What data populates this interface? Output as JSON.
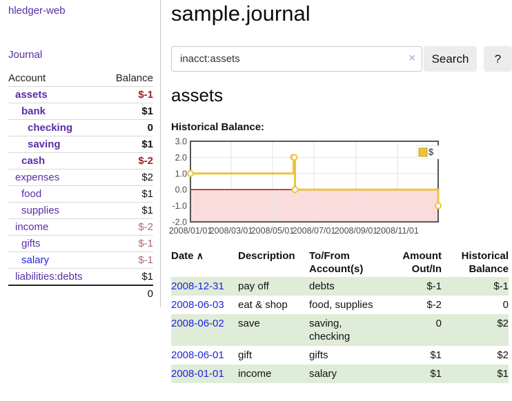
{
  "colors": {
    "link_purple": "#5a2ca6",
    "link_blue": "#2222dd",
    "negative_strong": "#9e1f1f",
    "negative_soft": "#b26868",
    "row_green": "#dfecd8",
    "chart_gold": "#edc240",
    "chart_negative_fill": "#fbdcdc",
    "chart_zero_line": "#8b0000"
  },
  "sidebar": {
    "brand": "hledger-web",
    "journal_link": "Journal",
    "accounts": {
      "header_account": "Account",
      "header_balance": "Balance",
      "rows": [
        {
          "name": "assets",
          "balance": "$-1",
          "depth": 1,
          "bold": true,
          "name_color": "purple",
          "balance_tone": "neg-strong"
        },
        {
          "name": "bank",
          "balance": "$1",
          "depth": 2,
          "bold": true,
          "name_color": "purple",
          "balance_tone": "normal"
        },
        {
          "name": "checking",
          "balance": "0",
          "depth": 3,
          "bold": true,
          "name_color": "purple",
          "balance_tone": "normal"
        },
        {
          "name": "saving",
          "balance": "$1",
          "depth": 3,
          "bold": true,
          "name_color": "purple",
          "balance_tone": "normal"
        },
        {
          "name": "cash",
          "balance": "$-2",
          "depth": 2,
          "bold": true,
          "name_color": "purple",
          "balance_tone": "neg-strong"
        },
        {
          "name": "expenses",
          "balance": "$2",
          "depth": 1,
          "bold": false,
          "name_color": "purple",
          "balance_tone": "normal"
        },
        {
          "name": "food",
          "balance": "$1",
          "depth": 2,
          "bold": false,
          "name_color": "purple",
          "balance_tone": "normal"
        },
        {
          "name": "supplies",
          "balance": "$1",
          "depth": 2,
          "bold": false,
          "name_color": "purple",
          "balance_tone": "normal"
        },
        {
          "name": "income",
          "balance": "$-2",
          "depth": 1,
          "bold": false,
          "name_color": "purple",
          "balance_tone": "neg-soft"
        },
        {
          "name": "gifts",
          "balance": "$-1",
          "depth": 2,
          "bold": false,
          "name_color": "purple",
          "balance_tone": "neg-soft"
        },
        {
          "name": "salary",
          "balance": "$-1",
          "depth": 2,
          "bold": false,
          "name_color": "blue",
          "balance_tone": "neg-soft"
        },
        {
          "name": "liabilities:debts",
          "balance": "$1",
          "depth": 1,
          "bold": false,
          "name_color": "purple",
          "balance_tone": "normal"
        }
      ],
      "total": "0"
    }
  },
  "main": {
    "title": "sample.journal",
    "search": {
      "value": "inacct:assets",
      "clear_icon": "×",
      "search_button": "Search",
      "help_button": "?"
    },
    "account_heading": "assets",
    "section_label": "Historical Balance:"
  },
  "chart_data": {
    "type": "line",
    "step": true,
    "title": "Historical Balance",
    "series": [
      {
        "name": "$",
        "color": "#edc240",
        "points": [
          {
            "date": "2008-01-01",
            "value": 1
          },
          {
            "date": "2008-06-01",
            "value": 2
          },
          {
            "date": "2008-06-02",
            "value": 2
          },
          {
            "date": "2008-06-03",
            "value": 0
          },
          {
            "date": "2008-12-31",
            "value": -1
          }
        ]
      }
    ],
    "x_domain": [
      "2008-01-01",
      "2008-12-31"
    ],
    "x_ticks": [
      {
        "label": "2008/01/01",
        "date": "2008-01-01"
      },
      {
        "label": "2008/03/01",
        "date": "2008-03-01"
      },
      {
        "label": "2008/05/01",
        "date": "2008-05-01"
      },
      {
        "label": "2008/07/01",
        "date": "2008-07-01"
      },
      {
        "label": "2008/09/01",
        "date": "2008-09-01"
      },
      {
        "label": "2008/11/01",
        "date": "2008-11-01"
      }
    ],
    "y_ticks": [
      3.0,
      2.0,
      1.0,
      0.0,
      -1.0,
      -2.0
    ],
    "ylim": [
      -2,
      3
    ],
    "grid": true,
    "legend": {
      "label": "$",
      "position": "top-right"
    },
    "negative_region_fill": "#fbdcdc",
    "zero_line_color": "#8b0000"
  },
  "register": {
    "headers": {
      "date": "Date",
      "sort_icon": "∧",
      "description": "Description",
      "accounts": "To/From Account(s)",
      "amount": "Amount Out/In",
      "balance": "Historical Balance"
    },
    "rows": [
      {
        "date": "2008-12-31",
        "description": "pay off",
        "accounts": "debts",
        "amount": "$-1",
        "amount_tone": "neg-strong",
        "balance": "$-1",
        "balance_tone": "neg-strong"
      },
      {
        "date": "2008-06-03",
        "description": "eat & shop",
        "accounts": "food, supplies",
        "amount": "$-2",
        "amount_tone": "neg-strong",
        "balance": "0",
        "balance_tone": "normal"
      },
      {
        "date": "2008-06-02",
        "description": "save",
        "accounts": "saving,\nchecking",
        "amount": "0",
        "amount_tone": "normal",
        "balance": "$2",
        "balance_tone": "normal"
      },
      {
        "date": "2008-06-01",
        "description": "gift",
        "accounts": "gifts",
        "amount": "$1",
        "amount_tone": "normal",
        "balance": "$2",
        "balance_tone": "normal"
      },
      {
        "date": "2008-01-01",
        "description": "income",
        "accounts": "salary",
        "amount": "$1",
        "amount_tone": "normal",
        "balance": "$1",
        "balance_tone": "normal"
      }
    ]
  }
}
